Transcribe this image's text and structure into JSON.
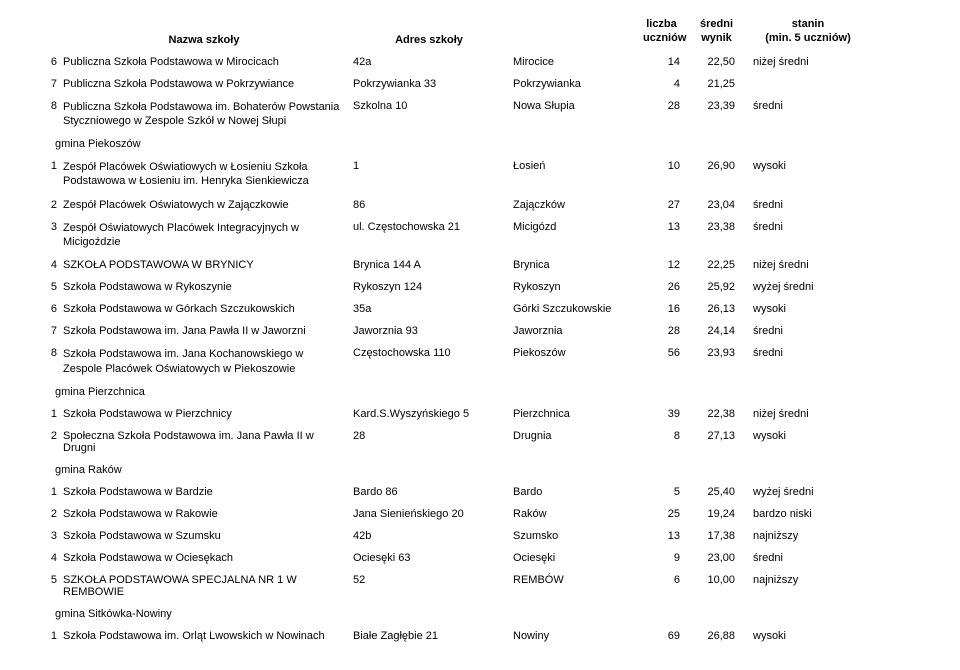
{
  "headers": {
    "name": "Nazwa szkoły",
    "address": "Adres szkoły",
    "count_l1": "liczba",
    "count_l2": "uczniów",
    "avg_l1": "średni",
    "avg_l2": "wynik",
    "stanin_l1": "stanin",
    "stanin_l2": "(min. 5 uczniów)"
  },
  "groups": {
    "g0": {
      "title": "",
      "rows": [
        {
          "num": "6",
          "name": "Publiczna Szkoła Podstawowa w Mirocicach",
          "addr": "42a",
          "city": "Mirocice",
          "cnt": "14",
          "avg": "22,50",
          "stanin": "niżej średni"
        },
        {
          "num": "7",
          "name": "Publiczna Szkoła Podstawowa w Pokrzywiance",
          "addr": "Pokrzywianka 33",
          "city": "Pokrzywianka",
          "cnt": "4",
          "avg": "21,25",
          "stanin": ""
        },
        {
          "num": "8",
          "name": "Publiczna Szkoła Podstawowa im. Bohaterów Powstania Styczniowego w Zespole Szkół w Nowej Słupi",
          "addr": "Szkolna 10",
          "city": "Nowa Słupia",
          "cnt": "28",
          "avg": "23,39",
          "stanin": "średni"
        }
      ]
    },
    "g1": {
      "title": "gmina Piekoszów",
      "rows": [
        {
          "num": "1",
          "name": "Zespół Placówek Oświatiowych w Łosieniu Szkoła Podstawowa w Łosieniu im. Henryka Sienkiewicza",
          "addr": "1",
          "city": "Łosień",
          "cnt": "10",
          "avg": "26,90",
          "stanin": "wysoki"
        },
        {
          "num": "2",
          "name": "Zespół Placówek Oświatowych w Zajączkowie",
          "addr": "86",
          "city": "Zajączków",
          "cnt": "27",
          "avg": "23,04",
          "stanin": "średni"
        },
        {
          "num": "3",
          "name": "Zespół Oświatowych Placówek Integracyjnych w Micigoździe",
          "addr": "ul. Częstochowska 21",
          "city": "Micigózd",
          "cnt": "13",
          "avg": "23,38",
          "stanin": "średni"
        },
        {
          "num": "4",
          "name": "SZKOŁA PODSTAWOWA W BRYNICY",
          "addr": "Brynica 144 A",
          "city": "Brynica",
          "cnt": "12",
          "avg": "22,25",
          "stanin": "niżej średni"
        },
        {
          "num": "5",
          "name": "Szkoła Podstawowa w Rykoszynie",
          "addr": "Rykoszyn 124",
          "city": "Rykoszyn",
          "cnt": "26",
          "avg": "25,92",
          "stanin": "wyżej średni"
        },
        {
          "num": "6",
          "name": "Szkoła Podstawowa w Górkach Szczukowskich",
          "addr": "35a",
          "city": "Górki Szczukowskie",
          "cnt": "16",
          "avg": "26,13",
          "stanin": "wysoki"
        },
        {
          "num": "7",
          "name": "Szkoła Podstawowa im. Jana Pawła II w Jaworzni",
          "addr": "Jaworznia 93",
          "city": "Jaworznia",
          "cnt": "28",
          "avg": "24,14",
          "stanin": "średni"
        },
        {
          "num": "8",
          "name": "Szkoła Podstawowa im. Jana Kochanowskiego w Zespole Placówek Oświatowych w Piekoszowie",
          "addr": "Częstochowska 110",
          "city": "Piekoszów",
          "cnt": "56",
          "avg": "23,93",
          "stanin": "średni"
        }
      ]
    },
    "g2": {
      "title": "gmina Pierzchnica",
      "rows": [
        {
          "num": "1",
          "name": "Szkoła Podstawowa w Pierzchnicy",
          "addr": "Kard.S.Wyszyńskiego 5",
          "city": "Pierzchnica",
          "cnt": "39",
          "avg": "22,38",
          "stanin": "niżej średni"
        },
        {
          "num": "2",
          "name": "Społeczna Szkoła Podstawowa im. Jana Pawła II w Drugni",
          "addr": "28",
          "city": "Drugnia",
          "cnt": "8",
          "avg": "27,13",
          "stanin": "wysoki"
        }
      ]
    },
    "g3": {
      "title": "gmina Raków",
      "rows": [
        {
          "num": "1",
          "name": "Szkoła Podstawowa w Bardzie",
          "addr": "Bardo 86",
          "city": "Bardo",
          "cnt": "5",
          "avg": "25,40",
          "stanin": "wyżej średni"
        },
        {
          "num": "2",
          "name": "Szkoła Podstawowa w Rakowie",
          "addr": "Jana Sienieńskiego 20",
          "city": "Raków",
          "cnt": "25",
          "avg": "19,24",
          "stanin": "bardzo niski"
        },
        {
          "num": "3",
          "name": "Szkoła Podstawowa w Szumsku",
          "addr": "42b",
          "city": "Szumsko",
          "cnt": "13",
          "avg": "17,38",
          "stanin": "najniższy"
        },
        {
          "num": "4",
          "name": "Szkoła Podstawowa w Ociesękach",
          "addr": "Ociesęki 63",
          "city": "Ociesęki",
          "cnt": "9",
          "avg": "23,00",
          "stanin": "średni"
        },
        {
          "num": "5",
          "name": "SZKOŁA PODSTAWOWA SPECJALNA NR 1 W REMBOWIE",
          "addr": "52",
          "city": "REMBÓW",
          "cnt": "6",
          "avg": "10,00",
          "stanin": "najniższy"
        }
      ]
    },
    "g4": {
      "title": "gmina Sitkówka-Nowiny",
      "rows": [
        {
          "num": "1",
          "name": "Szkoła Podstawowa im. Orląt Lwowskich w Nowinach",
          "addr": "Białe Zagłębie 21",
          "city": "Nowiny",
          "cnt": "69",
          "avg": "26,88",
          "stanin": "wysoki"
        }
      ]
    }
  },
  "group_order": [
    "g0",
    "g1",
    "g2",
    "g3",
    "g4"
  ]
}
